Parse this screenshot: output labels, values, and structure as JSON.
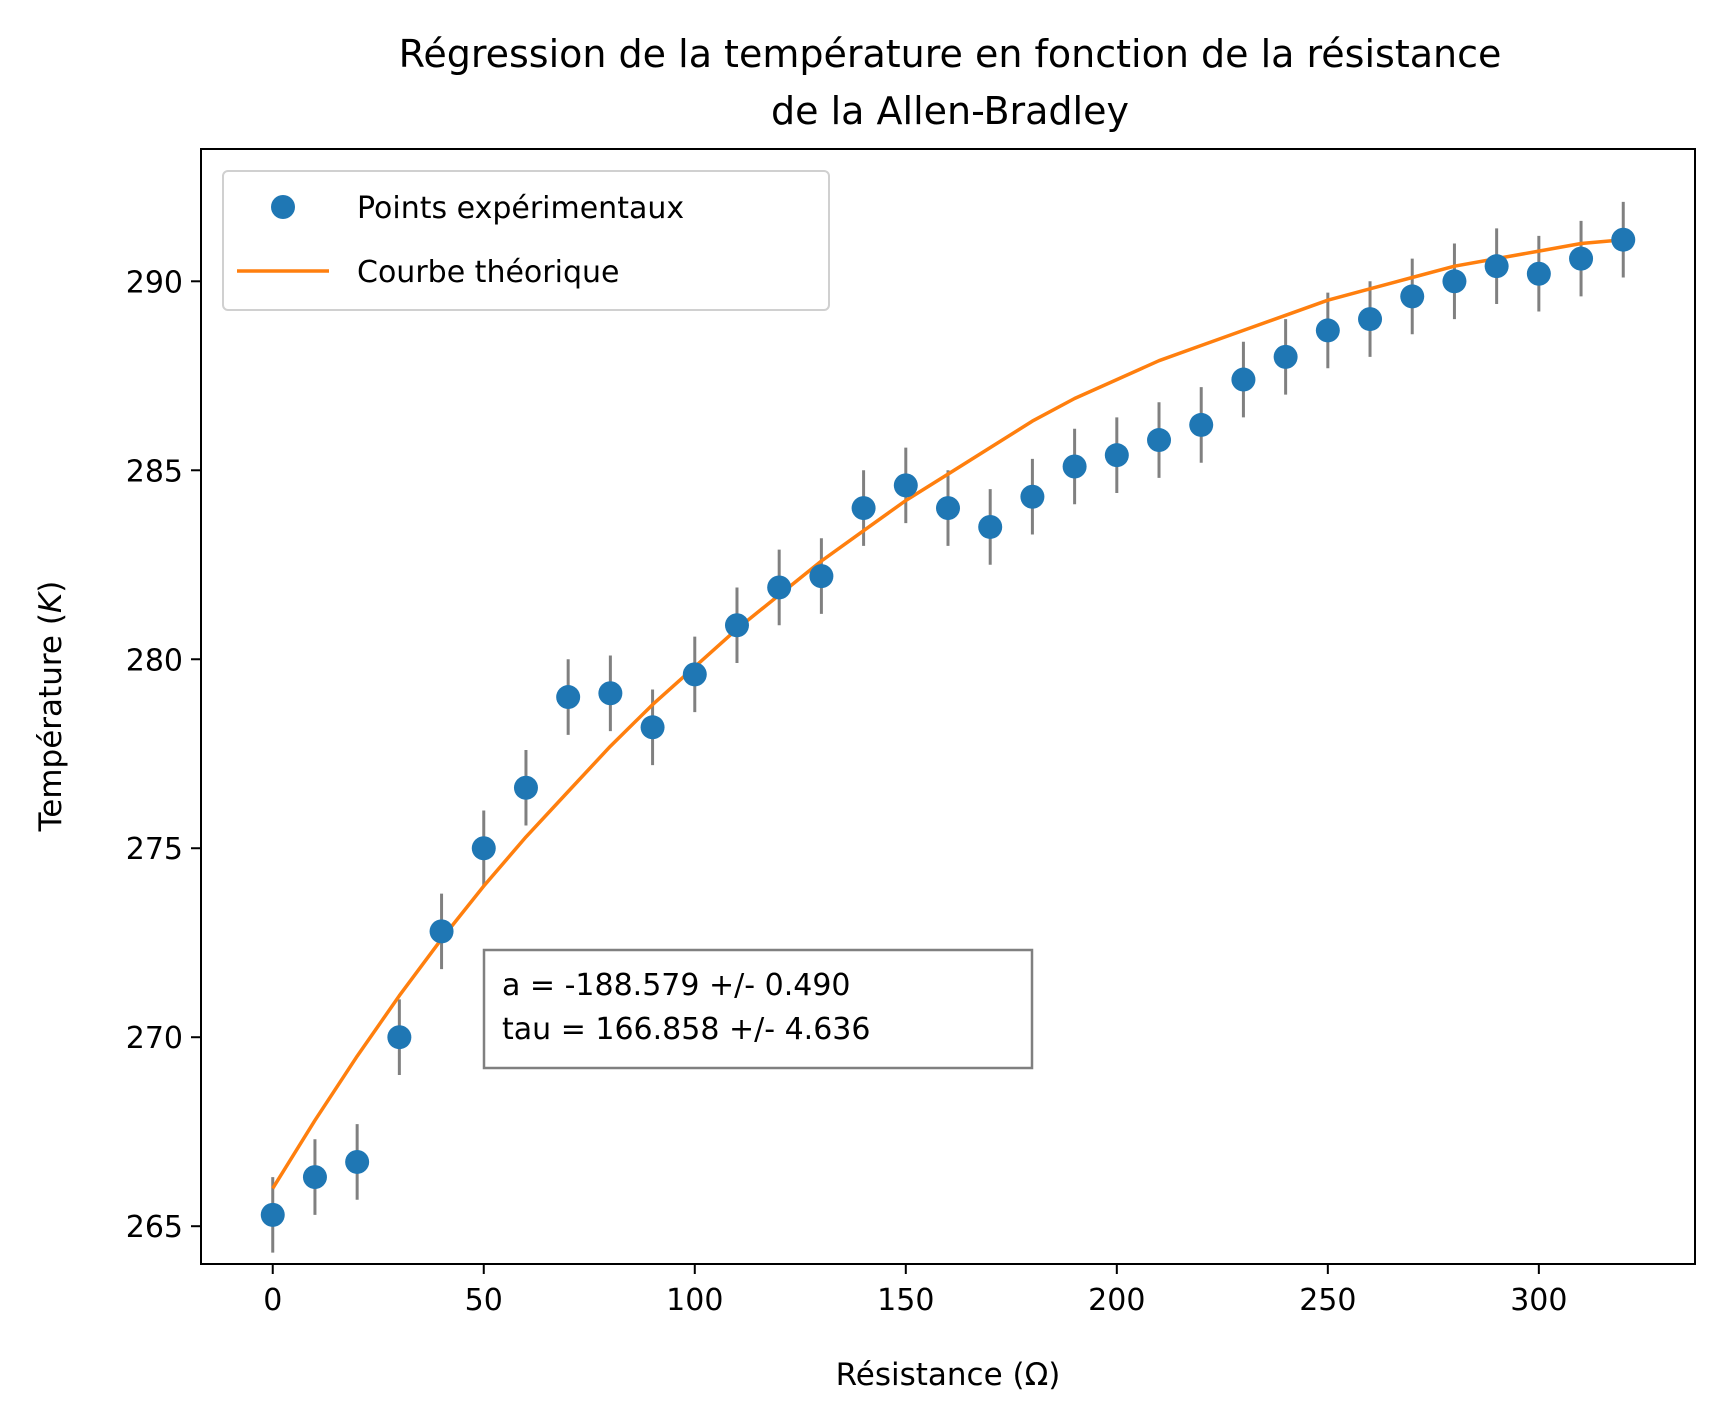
{
  "chart_data": {
    "type": "scatter",
    "title_line1": "Régression de la température en fonction de la résistance",
    "title_line2": "de la Allen-Bradley",
    "xlabel": "Résistance (Ω)",
    "ylabel_prefix": "Température (",
    "ylabel_unit": "K",
    "ylabel_suffix": ")",
    "xlim": [
      -17,
      337
    ],
    "ylim": [
      264,
      293.5
    ],
    "x_ticks": [
      0,
      50,
      100,
      150,
      200,
      250,
      300
    ],
    "y_ticks": [
      265,
      270,
      275,
      280,
      285,
      290
    ],
    "grid": false,
    "legend_position": "upper-left",
    "series": [
      {
        "name": "Points expérimentaux",
        "kind": "points",
        "color": "#1f77b4",
        "error_color": "#808080",
        "yerr": 1.0,
        "x": [
          0,
          10,
          20,
          30,
          40,
          50,
          60,
          70,
          80,
          90,
          100,
          110,
          120,
          130,
          140,
          150,
          160,
          170,
          180,
          190,
          200,
          210,
          220,
          230,
          240,
          250,
          260,
          270,
          280,
          290,
          300,
          310,
          320
        ],
        "y": [
          265.3,
          266.3,
          266.7,
          270.0,
          272.8,
          275.0,
          276.6,
          279.0,
          279.1,
          278.2,
          279.6,
          280.9,
          281.9,
          282.2,
          284.0,
          284.6,
          284.0,
          283.5,
          284.3,
          285.1,
          285.4,
          285.8,
          286.2,
          287.4,
          288.0,
          288.7,
          289.0,
          289.6,
          290.0,
          290.4,
          290.2,
          290.6,
          291.1
        ]
      },
      {
        "name": "Courbe théorique",
        "kind": "line",
        "color": "#ff7f0e",
        "x": [
          0,
          10,
          20,
          30,
          40,
          50,
          60,
          70,
          80,
          90,
          100,
          110,
          120,
          130,
          140,
          150,
          160,
          170,
          180,
          190,
          200,
          210,
          220,
          230,
          240,
          250,
          260,
          270,
          280,
          290,
          300,
          310,
          320
        ],
        "y": [
          266.0,
          267.8,
          269.5,
          271.1,
          272.6,
          274.0,
          275.3,
          276.5,
          277.7,
          278.8,
          279.8,
          280.8,
          281.7,
          282.6,
          283.4,
          284.2,
          284.9,
          285.6,
          286.3,
          286.9,
          287.4,
          287.9,
          288.3,
          288.7,
          289.1,
          289.5,
          289.8,
          290.1,
          290.4,
          290.6,
          290.8,
          291.0,
          291.1
        ]
      }
    ],
    "annotation": {
      "line1": "a = -188.579 +/- 0.490",
      "line2": "tau = 166.858 +/- 4.636"
    }
  }
}
